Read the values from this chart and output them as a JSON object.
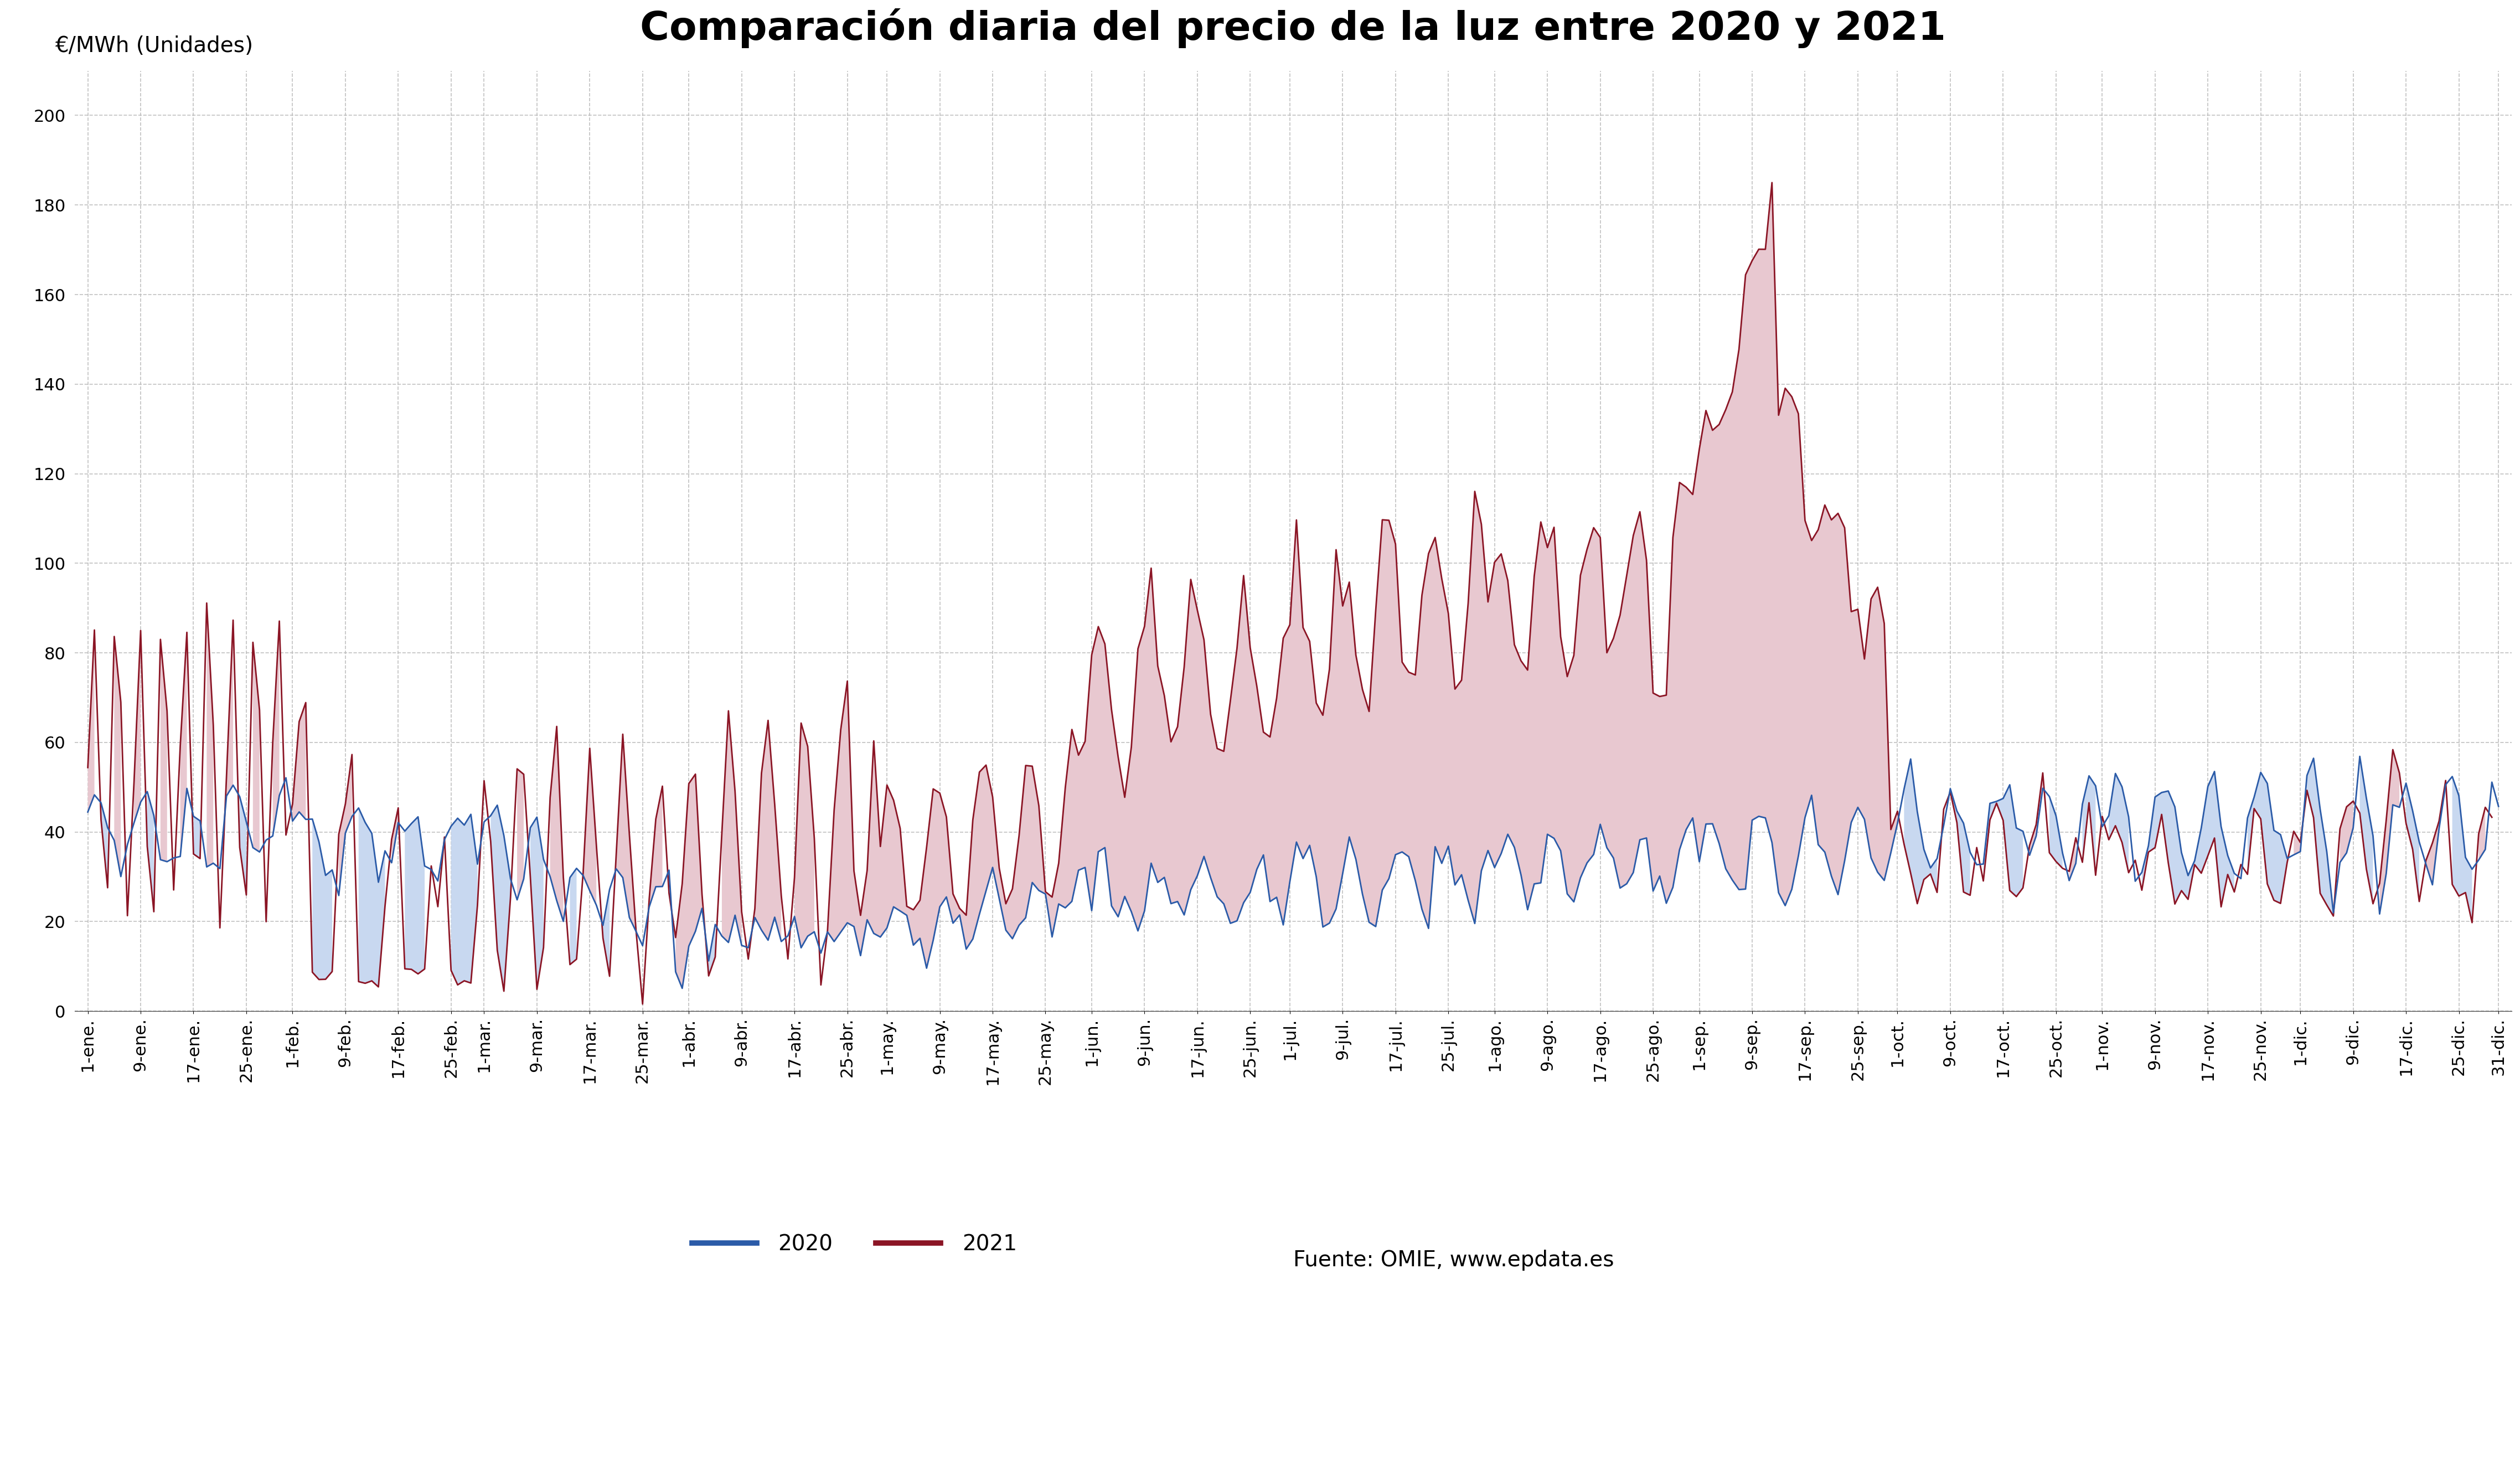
{
  "title": "Comparación diaria del precio de la luz entre 2020 y 2021",
  "ylabel": "€/MWh (Unidades)",
  "color_2020": "#2b5ba8",
  "color_2021": "#8b1525",
  "fill_red": "#e8c8d0",
  "fill_blue": "#c8d8f0",
  "ylim": [
    0,
    210
  ],
  "yticks": [
    0,
    20,
    40,
    60,
    80,
    100,
    120,
    140,
    160,
    180,
    200
  ],
  "source_text": "Fuente: OMIE, www.epdata.es",
  "legend_2020": "2020",
  "legend_2021": "2021",
  "background_color": "#ffffff",
  "grid_color": "#bbbbbb",
  "title_fontsize": 52,
  "label_fontsize": 28,
  "tick_fontsize": 22,
  "legend_fontsize": 28
}
